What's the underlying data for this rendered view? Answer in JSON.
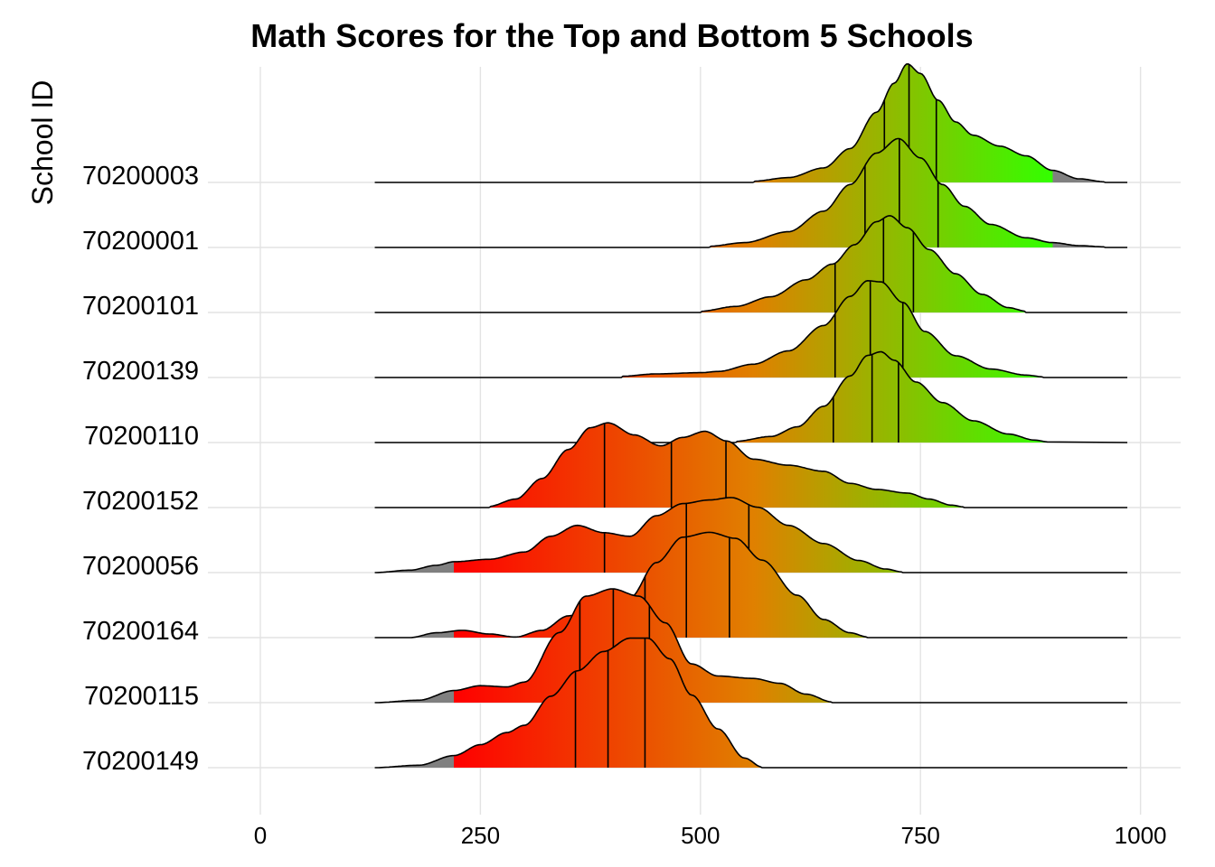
{
  "chart_data": {
    "type": "ridgeline",
    "title": "Math Scores for the Top and Bottom 5 Schools",
    "xlabel": "",
    "ylabel": "School ID",
    "xlim": [
      -100,
      1050
    ],
    "x_ticks": [
      0,
      250,
      500,
      750,
      1000
    ],
    "x_tick_labels": [
      "0",
      "250",
      "500",
      "750",
      "1000"
    ],
    "grid": true,
    "color_scale": {
      "low": "#ff0000",
      "mid": "#e08000",
      "high": "#33ff00",
      "out_of_range": "#808080",
      "range": [
        220,
        900
      ]
    },
    "series": [
      {
        "name": "70200003",
        "range": [
          130,
          985
        ],
        "density": [
          [
            560,
            0.01
          ],
          [
            600,
            0.04
          ],
          [
            640,
            0.12
          ],
          [
            670,
            0.28
          ],
          [
            700,
            0.58
          ],
          [
            720,
            0.82
          ],
          [
            735,
            0.98
          ],
          [
            750,
            0.9
          ],
          [
            770,
            0.68
          ],
          [
            790,
            0.5
          ],
          [
            810,
            0.39
          ],
          [
            840,
            0.3
          ],
          [
            870,
            0.22
          ],
          [
            900,
            0.1
          ],
          [
            930,
            0.03
          ],
          [
            960,
            0.005
          ]
        ],
        "quantiles": [
          709,
          737,
          768
        ]
      },
      {
        "name": "70200001",
        "range": [
          130,
          985
        ],
        "density": [
          [
            510,
            0.01
          ],
          [
            550,
            0.04
          ],
          [
            600,
            0.13
          ],
          [
            640,
            0.3
          ],
          [
            670,
            0.52
          ],
          [
            700,
            0.78
          ],
          [
            725,
            0.9
          ],
          [
            750,
            0.74
          ],
          [
            775,
            0.52
          ],
          [
            800,
            0.34
          ],
          [
            830,
            0.19
          ],
          [
            870,
            0.08
          ],
          [
            900,
            0.04
          ],
          [
            930,
            0.015
          ],
          [
            960,
            0.005
          ]
        ],
        "quantiles": [
          687,
          726,
          770
        ]
      },
      {
        "name": "70200101",
        "range": [
          130,
          985
        ],
        "density": [
          [
            500,
            0.01
          ],
          [
            540,
            0.05
          ],
          [
            580,
            0.13
          ],
          [
            620,
            0.27
          ],
          [
            650,
            0.4
          ],
          [
            675,
            0.56
          ],
          [
            700,
            0.75
          ],
          [
            715,
            0.8
          ],
          [
            735,
            0.7
          ],
          [
            760,
            0.52
          ],
          [
            790,
            0.32
          ],
          [
            820,
            0.15
          ],
          [
            850,
            0.04
          ],
          [
            870,
            0.01
          ]
        ],
        "quantiles": [
          653,
          708,
          742
        ]
      },
      {
        "name": "70200139",
        "range": [
          130,
          985
        ],
        "density": [
          [
            410,
            0.01
          ],
          [
            450,
            0.03
          ],
          [
            500,
            0.04
          ],
          [
            520,
            0.05
          ],
          [
            560,
            0.11
          ],
          [
            600,
            0.22
          ],
          [
            640,
            0.43
          ],
          [
            670,
            0.67
          ],
          [
            690,
            0.8
          ],
          [
            705,
            0.79
          ],
          [
            730,
            0.62
          ],
          [
            755,
            0.38
          ],
          [
            790,
            0.18
          ],
          [
            830,
            0.07
          ],
          [
            870,
            0.02
          ],
          [
            890,
            0.005
          ]
        ],
        "quantiles": [
          653,
          693,
          730
        ]
      },
      {
        "name": "70200110",
        "range": [
          130,
          985
        ],
        "density": [
          [
            540,
            0.01
          ],
          [
            580,
            0.05
          ],
          [
            610,
            0.13
          ],
          [
            640,
            0.3
          ],
          [
            670,
            0.55
          ],
          [
            690,
            0.72
          ],
          [
            705,
            0.75
          ],
          [
            720,
            0.68
          ],
          [
            745,
            0.5
          ],
          [
            775,
            0.33
          ],
          [
            810,
            0.18
          ],
          [
            850,
            0.07
          ],
          [
            880,
            0.02
          ],
          [
            895,
            0.005
          ]
        ],
        "quantiles": [
          651,
          695,
          725
        ]
      },
      {
        "name": "70200152",
        "range": [
          130,
          985
        ],
        "density": [
          [
            260,
            0.01
          ],
          [
            290,
            0.07
          ],
          [
            320,
            0.24
          ],
          [
            350,
            0.48
          ],
          [
            375,
            0.66
          ],
          [
            395,
            0.7
          ],
          [
            425,
            0.6
          ],
          [
            455,
            0.51
          ],
          [
            480,
            0.58
          ],
          [
            505,
            0.63
          ],
          [
            530,
            0.55
          ],
          [
            560,
            0.4
          ],
          [
            600,
            0.35
          ],
          [
            640,
            0.3
          ],
          [
            670,
            0.2
          ],
          [
            700,
            0.15
          ],
          [
            735,
            0.12
          ],
          [
            760,
            0.07
          ],
          [
            785,
            0.02
          ],
          [
            800,
            0.005
          ]
        ],
        "quantiles": [
          391,
          467,
          529
        ]
      },
      {
        "name": "70200056",
        "range": [
          130,
          985
        ],
        "density": [
          [
            130,
            0.0
          ],
          [
            170,
            0.02
          ],
          [
            200,
            0.06
          ],
          [
            220,
            0.09
          ],
          [
            260,
            0.11
          ],
          [
            300,
            0.17
          ],
          [
            330,
            0.3
          ],
          [
            360,
            0.39
          ],
          [
            390,
            0.33
          ],
          [
            420,
            0.3
          ],
          [
            450,
            0.47
          ],
          [
            480,
            0.57
          ],
          [
            510,
            0.6
          ],
          [
            535,
            0.62
          ],
          [
            565,
            0.54
          ],
          [
            600,
            0.39
          ],
          [
            640,
            0.24
          ],
          [
            680,
            0.1
          ],
          [
            710,
            0.03
          ],
          [
            730,
            0.005
          ]
        ],
        "quantiles": [
          391,
          484,
          555
        ]
      },
      {
        "name": "70200164",
        "range": [
          130,
          985
        ],
        "density": [
          [
            130,
            0.0
          ],
          [
            170,
            0.0
          ],
          [
            200,
            0.04
          ],
          [
            230,
            0.06
          ],
          [
            260,
            0.03
          ],
          [
            290,
            0.005
          ],
          [
            320,
            0.06
          ],
          [
            350,
            0.18
          ],
          [
            380,
            0.26
          ],
          [
            420,
            0.33
          ],
          [
            450,
            0.62
          ],
          [
            480,
            0.83
          ],
          [
            510,
            0.87
          ],
          [
            540,
            0.82
          ],
          [
            570,
            0.64
          ],
          [
            610,
            0.35
          ],
          [
            640,
            0.15
          ],
          [
            670,
            0.04
          ],
          [
            690,
            0.005
          ]
        ],
        "quantiles": [
          437,
          484,
          533
        ]
      },
      {
        "name": "70200115",
        "range": [
          130,
          985
        ],
        "density": [
          [
            130,
            0.0
          ],
          [
            180,
            0.02
          ],
          [
            220,
            0.1
          ],
          [
            250,
            0.14
          ],
          [
            280,
            0.13
          ],
          [
            300,
            0.17
          ],
          [
            340,
            0.58
          ],
          [
            370,
            0.88
          ],
          [
            400,
            0.94
          ],
          [
            430,
            0.88
          ],
          [
            460,
            0.66
          ],
          [
            490,
            0.32
          ],
          [
            520,
            0.22
          ],
          [
            560,
            0.2
          ],
          [
            590,
            0.16
          ],
          [
            620,
            0.07
          ],
          [
            650,
            0.005
          ]
        ],
        "quantiles": [
          363,
          401,
          442
        ]
      },
      {
        "name": "70200149",
        "range": [
          130,
          985
        ],
        "density": [
          [
            130,
            0.0
          ],
          [
            180,
            0.02
          ],
          [
            220,
            0.1
          ],
          [
            250,
            0.19
          ],
          [
            280,
            0.29
          ],
          [
            300,
            0.35
          ],
          [
            330,
            0.59
          ],
          [
            360,
            0.8
          ],
          [
            390,
            0.96
          ],
          [
            420,
            1.07
          ],
          [
            440,
            1.07
          ],
          [
            465,
            0.9
          ],
          [
            490,
            0.6
          ],
          [
            520,
            0.32
          ],
          [
            550,
            0.08
          ],
          [
            570,
            0.005
          ]
        ],
        "quantiles": [
          358,
          395,
          437
        ]
      }
    ]
  }
}
